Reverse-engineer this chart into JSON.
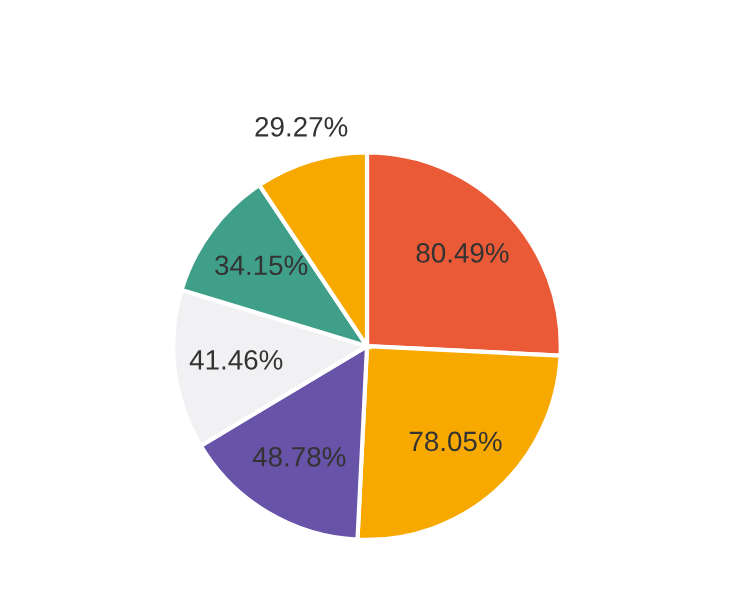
{
  "chart_data": {
    "type": "pie",
    "categories": [
      null,
      null,
      null,
      null,
      null,
      null
    ],
    "values": [
      80.49,
      78.05,
      48.78,
      41.46,
      34.15,
      29.27
    ],
    "value_labels": [
      "80.49%",
      "78.05%",
      "48.78%",
      "41.46%",
      "34.15%",
      "29.27%"
    ],
    "colors": [
      "#eb5a36",
      "#f8a900",
      "#6753a8",
      "#f1f1f3",
      "#3f9f89",
      "#f8a900"
    ]
  }
}
